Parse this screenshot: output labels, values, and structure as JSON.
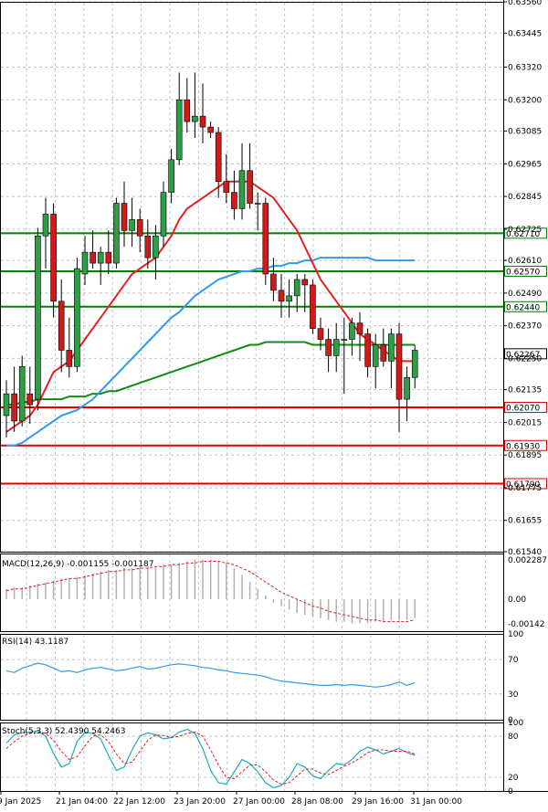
{
  "chart_data": {
    "type": "candlestick",
    "price_axis": {
      "ticks": [
        "0.63560",
        "0.63445",
        "0.63320",
        "0.63200",
        "0.63085",
        "0.62965",
        "0.62845",
        "0.62725",
        "0.62610",
        "0.62490",
        "0.62370",
        "0.62250",
        "0.62135",
        "0.62015",
        "0.61895",
        "0.61775",
        "0.61655",
        "0.61540"
      ],
      "ylim": [
        0.6154,
        0.6356
      ]
    },
    "time_axis": [
      "9 Jan 2025",
      "21 Jan 04:00",
      "22 Jan 12:00",
      "23 Jan 20:00",
      "27 Jan 00:00",
      "28 Jan 08:00",
      "29 Jan 16:00",
      "31 Jan 00:00"
    ],
    "levels": [
      {
        "value": 0.6271,
        "label": "0.62710",
        "color": "#008000"
      },
      {
        "value": 0.6257,
        "label": "0.62570",
        "color": "#008000"
      },
      {
        "value": 0.6244,
        "label": "0.62440",
        "color": "#008000"
      },
      {
        "value": 0.6207,
        "label": "0.62070",
        "color": "#e00000"
      },
      {
        "value": 0.6193,
        "label": "0.61930",
        "color": "#e00000"
      },
      {
        "value": 0.6179,
        "label": "0.61790",
        "color": "#e00000"
      }
    ],
    "current_price": {
      "value": 0.62267,
      "label": "0.62267"
    },
    "candles": [
      [
        0.6204,
        0.6217,
        0.6196,
        0.6212
      ],
      [
        0.6212,
        0.6222,
        0.6198,
        0.6202
      ],
      [
        0.6202,
        0.6226,
        0.62,
        0.6222
      ],
      [
        0.6212,
        0.6222,
        0.6201,
        0.6208
      ],
      [
        0.621,
        0.6273,
        0.6206,
        0.627
      ],
      [
        0.627,
        0.6284,
        0.6258,
        0.6278
      ],
      [
        0.6278,
        0.6282,
        0.624,
        0.6246
      ],
      [
        0.6246,
        0.6254,
        0.622,
        0.6228
      ],
      [
        0.6228,
        0.624,
        0.6218,
        0.6222
      ],
      [
        0.6222,
        0.6262,
        0.622,
        0.6258
      ],
      [
        0.6256,
        0.627,
        0.6252,
        0.6264
      ],
      [
        0.6264,
        0.6272,
        0.6258,
        0.626
      ],
      [
        0.626,
        0.6266,
        0.6252,
        0.6264
      ],
      [
        0.6264,
        0.6272,
        0.6256,
        0.626
      ],
      [
        0.626,
        0.6284,
        0.6258,
        0.6282
      ],
      [
        0.6282,
        0.629,
        0.6266,
        0.6272
      ],
      [
        0.6272,
        0.6284,
        0.6266,
        0.6276
      ],
      [
        0.6276,
        0.628,
        0.6264,
        0.627
      ],
      [
        0.627,
        0.6276,
        0.6258,
        0.6262
      ],
      [
        0.6262,
        0.6274,
        0.6254,
        0.627
      ],
      [
        0.627,
        0.629,
        0.6266,
        0.6286
      ],
      [
        0.6286,
        0.6302,
        0.6282,
        0.6298
      ],
      [
        0.6298,
        0.633,
        0.6296,
        0.632
      ],
      [
        0.632,
        0.6328,
        0.6308,
        0.6312
      ],
      [
        0.6312,
        0.633,
        0.6306,
        0.6314
      ],
      [
        0.6314,
        0.6326,
        0.6304,
        0.631
      ],
      [
        0.631,
        0.6312,
        0.6306,
        0.6308
      ],
      [
        0.6308,
        0.631,
        0.6284,
        0.629
      ],
      [
        0.629,
        0.63,
        0.6282,
        0.6286
      ],
      [
        0.6286,
        0.6294,
        0.6276,
        0.628
      ],
      [
        0.628,
        0.6304,
        0.6276,
        0.6294
      ],
      [
        0.6294,
        0.6304,
        0.628,
        0.6282
      ],
      [
        0.6282,
        0.6286,
        0.6272,
        0.6282
      ],
      [
        0.6282,
        0.6284,
        0.6252,
        0.6256
      ],
      [
        0.6256,
        0.6262,
        0.6246,
        0.625
      ],
      [
        0.625,
        0.6256,
        0.624,
        0.6246
      ],
      [
        0.6246,
        0.6254,
        0.624,
        0.6248
      ],
      [
        0.6248,
        0.6256,
        0.6242,
        0.6254
      ],
      [
        0.6254,
        0.6256,
        0.6242,
        0.6252
      ],
      [
        0.6252,
        0.6254,
        0.6234,
        0.6236
      ],
      [
        0.6236,
        0.624,
        0.6228,
        0.6232
      ],
      [
        0.6232,
        0.6236,
        0.622,
        0.6226
      ],
      [
        0.6226,
        0.6238,
        0.622,
        0.6232
      ],
      [
        0.6232,
        0.624,
        0.6212,
        0.6232
      ],
      [
        0.6232,
        0.624,
        0.6226,
        0.6238
      ],
      [
        0.6238,
        0.6242,
        0.6224,
        0.6234
      ],
      [
        0.6234,
        0.6236,
        0.6218,
        0.6222
      ],
      [
        0.6222,
        0.6234,
        0.6214,
        0.623
      ],
      [
        0.623,
        0.6236,
        0.6222,
        0.6224
      ],
      [
        0.6224,
        0.6236,
        0.6214,
        0.6234
      ],
      [
        0.6234,
        0.6238,
        0.6198,
        0.621
      ],
      [
        0.621,
        0.6222,
        0.6202,
        0.6218
      ],
      [
        0.6218,
        0.623,
        0.6214,
        0.6228
      ]
    ],
    "ma_red": [
      0.6198,
      0.62,
      0.6202,
      0.6204,
      0.6208,
      0.6214,
      0.622,
      0.6222,
      0.6224,
      0.6228,
      0.6232,
      0.6236,
      0.624,
      0.6244,
      0.6248,
      0.6252,
      0.6256,
      0.6258,
      0.626,
      0.6262,
      0.6266,
      0.627,
      0.6276,
      0.628,
      0.6282,
      0.6284,
      0.6286,
      0.6288,
      0.629,
      0.629,
      0.629,
      0.629,
      0.6288,
      0.6286,
      0.6284,
      0.628,
      0.6276,
      0.6272,
      0.6266,
      0.626,
      0.6254,
      0.625,
      0.6246,
      0.6242,
      0.6238,
      0.6234,
      0.6232,
      0.623,
      0.6228,
      0.6226,
      0.6224,
      0.6224,
      0.6224
    ],
    "ma_blue": [
      0.6193,
      0.6193,
      0.6194,
      0.6196,
      0.6198,
      0.62,
      0.6202,
      0.6204,
      0.6205,
      0.6206,
      0.6208,
      0.621,
      0.6213,
      0.6216,
      0.6219,
      0.6222,
      0.6225,
      0.6228,
      0.6231,
      0.6234,
      0.6237,
      0.624,
      0.6242,
      0.6245,
      0.6248,
      0.625,
      0.6252,
      0.6254,
      0.6255,
      0.6256,
      0.6257,
      0.6257,
      0.6258,
      0.6258,
      0.6259,
      0.6259,
      0.626,
      0.626,
      0.6261,
      0.6261,
      0.6262,
      0.6262,
      0.6262,
      0.6262,
      0.6262,
      0.6262,
      0.6262,
      0.6261,
      0.6261,
      0.6261,
      0.6261,
      0.6261,
      0.6261
    ],
    "ma_green": [
      0.6208,
      0.6208,
      0.6209,
      0.6209,
      0.621,
      0.621,
      0.621,
      0.621,
      0.6211,
      0.6211,
      0.6211,
      0.6212,
      0.6212,
      0.6213,
      0.6213,
      0.6214,
      0.6215,
      0.6216,
      0.6217,
      0.6218,
      0.6219,
      0.622,
      0.6221,
      0.6222,
      0.6223,
      0.6224,
      0.6225,
      0.6226,
      0.6227,
      0.6228,
      0.6229,
      0.623,
      0.623,
      0.6231,
      0.6231,
      0.6231,
      0.6231,
      0.6231,
      0.6231,
      0.623,
      0.623,
      0.623,
      0.623,
      0.623,
      0.623,
      0.623,
      0.623,
      0.623,
      0.623,
      0.623,
      0.623,
      0.623,
      0.623
    ],
    "macd": {
      "label": "MACD(12,26,9) -0.001155 -0.001187",
      "ticks": [
        "0.002287",
        "0.00",
        "-0.00142"
      ],
      "ylim": [
        -0.00185,
        0.00265
      ],
      "hist": [
        0.0006,
        0.0007,
        0.0007,
        0.0008,
        0.0009,
        0.001,
        0.0011,
        0.0012,
        0.0012,
        0.0013,
        0.0014,
        0.0015,
        0.0016,
        0.0017,
        0.0017,
        0.0018,
        0.0018,
        0.0019,
        0.0019,
        0.0019,
        0.002,
        0.002,
        0.0021,
        0.0022,
        0.0023,
        0.0023,
        0.0023,
        0.0022,
        0.0021,
        0.0018,
        0.0014,
        0.001,
        0.0006,
        0.0002,
        -0.0002,
        -0.0004,
        -0.0006,
        -0.0008,
        -0.0009,
        -0.001,
        -0.0011,
        -0.0012,
        -0.0013,
        -0.0013,
        -0.0014,
        -0.0014,
        -0.0014,
        -0.0013,
        -0.0013,
        -0.0012,
        -0.0012,
        -0.0012,
        -0.0011
      ],
      "signal": [
        0.0005,
        0.0006,
        0.0006,
        0.0007,
        0.0008,
        0.0009,
        0.001,
        0.0011,
        0.0012,
        0.0012,
        0.0013,
        0.0014,
        0.0015,
        0.0016,
        0.0016,
        0.0017,
        0.0017,
        0.0018,
        0.0018,
        0.0019,
        0.0019,
        0.002,
        0.002,
        0.0021,
        0.0021,
        0.0022,
        0.0022,
        0.0022,
        0.0021,
        0.002,
        0.0018,
        0.0016,
        0.0013,
        0.001,
        0.0007,
        0.0004,
        0.0002,
        0.0,
        -0.0002,
        -0.0004,
        -0.0005,
        -0.0007,
        -0.0008,
        -0.0009,
        -0.001,
        -0.0011,
        -0.0012,
        -0.0012,
        -0.0013,
        -0.0013,
        -0.0013,
        -0.0013,
        -0.0012
      ]
    },
    "rsi": {
      "label": "RSI(14) 43.1187",
      "ticks": [
        "100",
        "70",
        "30",
        "0"
      ],
      "values": [
        57,
        55,
        60,
        63,
        66,
        64,
        60,
        56,
        57,
        55,
        58,
        60,
        61,
        59,
        57,
        58,
        60,
        62,
        59,
        60,
        62,
        64,
        65,
        64,
        63,
        61,
        60,
        58,
        57,
        55,
        54,
        53,
        52,
        50,
        47,
        45,
        44,
        43,
        42,
        41,
        40,
        40,
        41,
        40,
        41,
        40,
        39,
        38,
        39,
        41,
        44,
        40,
        43
      ]
    },
    "stoch": {
      "label": "Stoch(5,3,3) 52.4390 54.2463",
      "ticks": [
        "100",
        "80",
        "20",
        "0"
      ],
      "k": [
        70,
        82,
        85,
        86,
        88,
        80,
        55,
        35,
        40,
        72,
        86,
        84,
        76,
        52,
        30,
        35,
        60,
        80,
        85,
        82,
        76,
        78,
        86,
        90,
        84,
        62,
        30,
        12,
        10,
        28,
        46,
        40,
        28,
        12,
        5,
        8,
        20,
        40,
        35,
        22,
        18,
        30,
        40,
        38,
        46,
        58,
        64,
        60,
        54,
        58,
        62,
        56,
        52
      ],
      "d": [
        62,
        72,
        80,
        84,
        86,
        84,
        74,
        58,
        46,
        50,
        66,
        80,
        82,
        72,
        54,
        40,
        42,
        58,
        74,
        82,
        81,
        78,
        80,
        84,
        86,
        80,
        60,
        38,
        20,
        18,
        28,
        38,
        38,
        28,
        16,
        10,
        12,
        22,
        32,
        32,
        26,
        24,
        30,
        36,
        41,
        48,
        56,
        60,
        60,
        58,
        58,
        58,
        54
      ]
    }
  }
}
